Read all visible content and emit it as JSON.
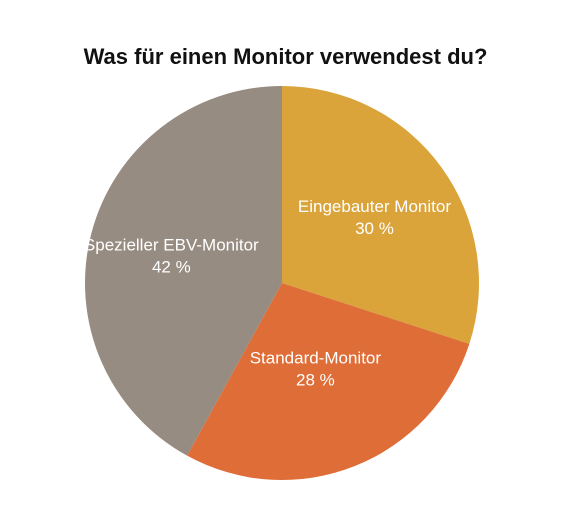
{
  "chart_data": {
    "type": "pie",
    "title": "Was für einen Monitor verwendest du?",
    "slices": [
      {
        "label": "Eingebauter Monitor",
        "value": 30,
        "value_label": "30 %",
        "color": "#DBA43A"
      },
      {
        "label": "Standard-Monitor",
        "value": 28,
        "value_label": "28 %",
        "color": "#DE6D37"
      },
      {
        "label": "Spezieller EBV-Monitor",
        "value": 42,
        "value_label": "42 %",
        "color": "#978C82"
      }
    ],
    "start": "12 o'clock",
    "direction": "clockwise",
    "legend": "none",
    "labels": "inside slices"
  }
}
